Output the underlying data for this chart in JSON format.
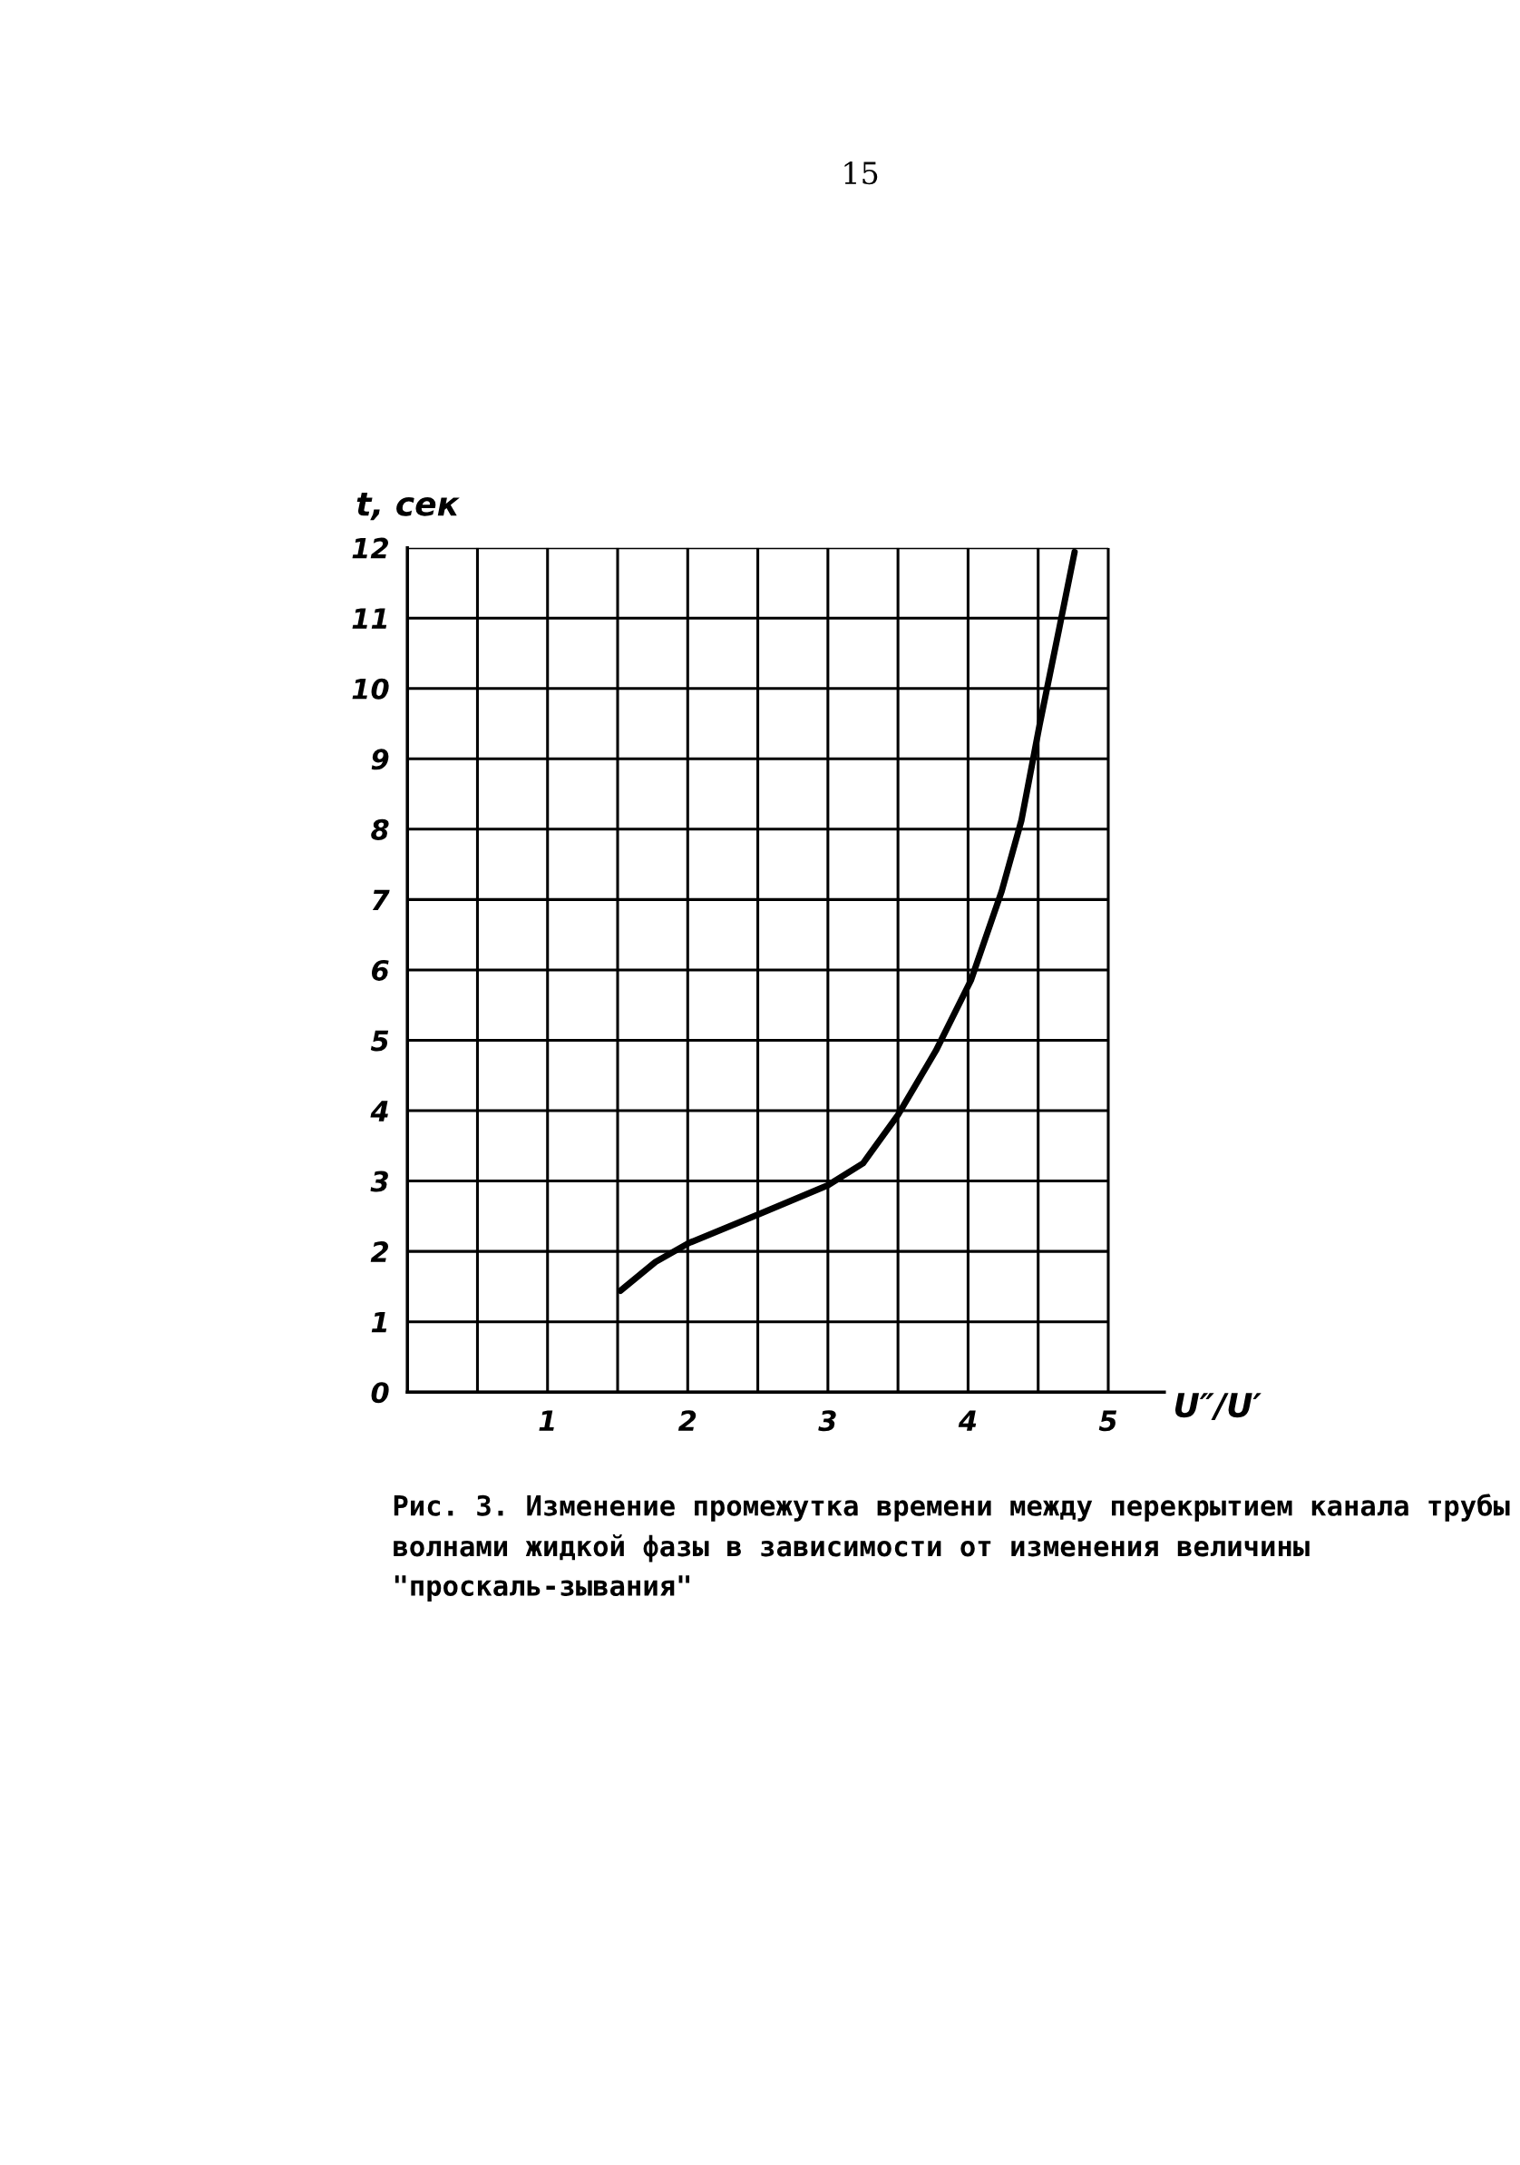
{
  "chart_data": {
    "type": "line",
    "xlabel": "U″/U′",
    "ylabel": "t, сек",
    "annotations": [
      "15",
      "Рис. 3. Изменение промежутка времени между перекрытием канала трубы волнами жидкой фазы в зависимости от изменения величины \"проскаль-зывания\""
    ],
    "x": [
      1.52,
      1.77,
      2.01,
      2.51,
      3.0,
      3.25,
      3.5,
      3.77,
      4.02,
      4.24,
      4.38,
      4.51,
      4.65,
      4.76
    ],
    "series": [
      {
        "color": "#000000",
        "values": [
          1.44,
          1.85,
          2.12,
          2.53,
          2.94,
          3.25,
          3.94,
          4.85,
          5.85,
          7.12,
          8.12,
          9.48,
          10.85,
          11.94
        ]
      }
    ],
    "xlim": [
      0,
      5.4
    ],
    "ylim": [
      0,
      12
    ],
    "xticks": [
      {
        "value": 0,
        "label": null
      },
      {
        "value": 0.5,
        "label": null
      },
      1,
      {
        "value": 1.5,
        "label": null
      },
      2,
      {
        "value": 2.5,
        "label": null
      },
      3,
      {
        "value": 3.5,
        "label": null
      },
      4,
      {
        "value": 4.5,
        "label": null
      },
      5
    ],
    "yticks": [
      0,
      1,
      2,
      3,
      4,
      5,
      6,
      7,
      8,
      9,
      10,
      11,
      12
    ],
    "grid": true,
    "marker": "none",
    "line_style": "solid"
  }
}
